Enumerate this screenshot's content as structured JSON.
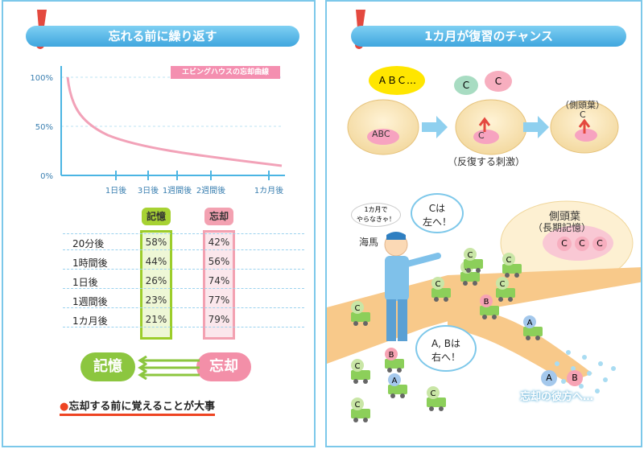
{
  "left_panel": {
    "title": "忘れる前に繰り返す",
    "chart_title": "エビングハウスの忘却曲線",
    "chart_data": {
      "type": "line",
      "title": "エビングハウスの忘却曲線",
      "y_ticks": [
        "100%",
        "50%",
        "0%"
      ],
      "x_ticks": [
        "1日後",
        "3日後",
        "1週間後",
        "2週間後",
        "1カ月後"
      ],
      "ylim": [
        0,
        100
      ],
      "series": [
        {
          "x": [
            "0",
            "20分後",
            "1時間後",
            "1日後",
            "1週間後",
            "1カ月後"
          ],
          "y": [
            100,
            58,
            44,
            26,
            23,
            21
          ]
        }
      ],
      "line_color": "#f2a2b8"
    },
    "table": {
      "header_memory": "記憶",
      "header_forget": "忘却",
      "rows": [
        {
          "label": "20分後",
          "memory": "58%",
          "forget": "42%"
        },
        {
          "label": "1時間後",
          "memory": "44%",
          "forget": "56%"
        },
        {
          "label": "1日後",
          "memory": "26%",
          "forget": "74%"
        },
        {
          "label": "1週間後",
          "memory": "23%",
          "forget": "77%"
        },
        {
          "label": "1カ月後",
          "memory": "21%",
          "forget": "79%"
        }
      ]
    },
    "memory_label": "記憶",
    "forget_label": "忘却",
    "conclusion": "忘却する前に覚えることが大事",
    "colors": {
      "memory": "#9ccd2a",
      "forget": "#f3a1b1",
      "accent": "#e42"
    }
  },
  "right_panel": {
    "title": "1カ月が復習のチャンス",
    "bubble_abc": "ＡＢＣ…",
    "brain1_label": "ABC",
    "bubble_c1": "C",
    "bubble_c2": "C",
    "brain2_label": "C",
    "brain3_caption": "（側頭葉）",
    "brain3_label": "C",
    "stimulus_caption": "（反復する刺激）",
    "small_bubble": "1カ月で\nやらなきゃ！",
    "hippocampus": "海馬",
    "bubble_left_line1": "Cは",
    "bubble_left_line2": "左へ！",
    "bubble_right_line1": "A, Bは",
    "bubble_right_line2": "右へ！",
    "temporal_title": "側頭葉",
    "temporal_sub": "（長期記憶）",
    "temporal_items": [
      "C",
      "C",
      "C"
    ],
    "oblivion": "忘却の彼方へ…",
    "trucks": [
      {
        "label": "C"
      },
      {
        "label": "C"
      },
      {
        "label": "C"
      },
      {
        "label": "C"
      },
      {
        "label": "C"
      },
      {
        "label": "B"
      },
      {
        "label": "A"
      },
      {
        "label": "C"
      },
      {
        "label": "B"
      },
      {
        "label": "A"
      },
      {
        "label": "C"
      },
      {
        "label": "C"
      },
      {
        "label": "C"
      }
    ],
    "oblivion_items": [
      "A",
      "B"
    ]
  }
}
